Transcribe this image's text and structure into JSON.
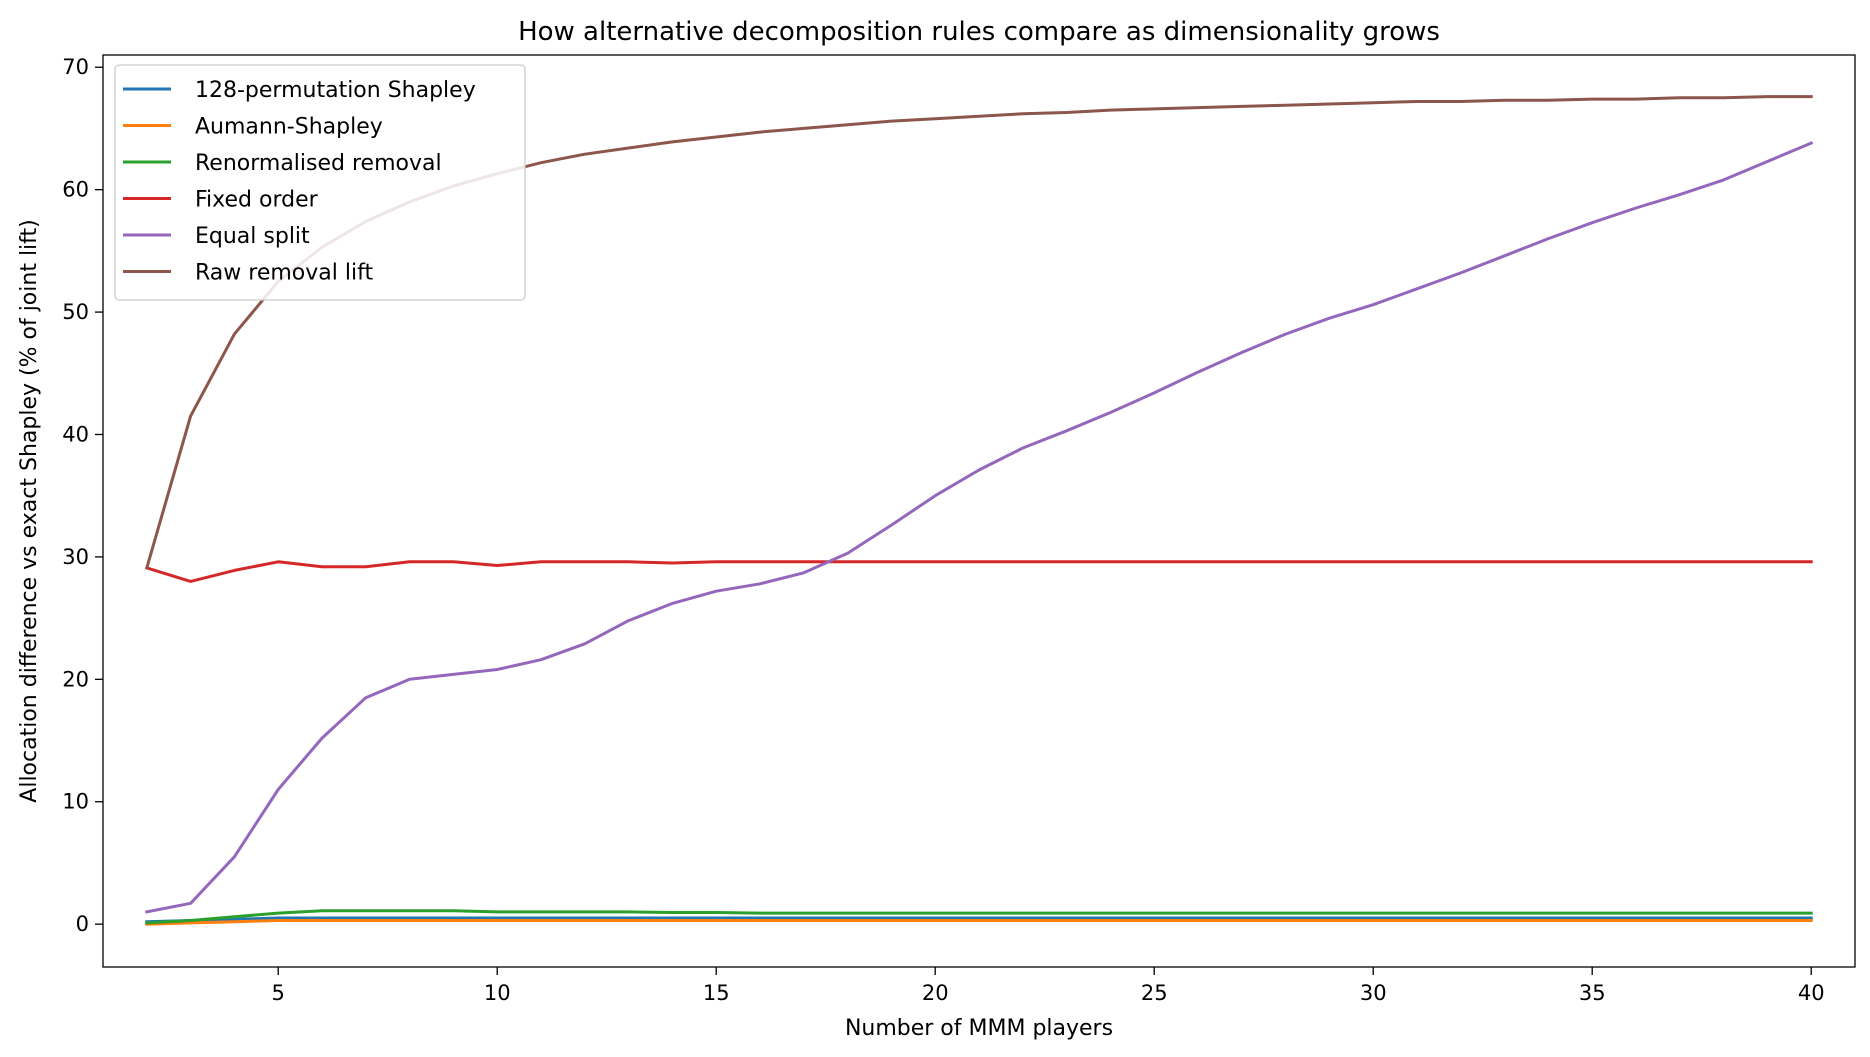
{
  "chart_data": {
    "type": "line",
    "title": "How alternative decomposition rules compare as dimensionality grows",
    "xlabel": "Number of MMM players",
    "ylabel": "Allocation difference vs exact Shapley (% of joint lift)",
    "xlim": [
      1.0,
      41.0
    ],
    "ylim": [
      -3.5,
      71.0
    ],
    "xticks": [
      5,
      10,
      15,
      20,
      25,
      30,
      35,
      40
    ],
    "yticks": [
      0,
      10,
      20,
      30,
      40,
      50,
      60,
      70
    ],
    "grid": false,
    "legend_position": "upper-left",
    "x": [
      2,
      3,
      4,
      5,
      6,
      7,
      8,
      9,
      10,
      11,
      12,
      13,
      14,
      15,
      16,
      17,
      18,
      19,
      20,
      21,
      22,
      23,
      24,
      25,
      26,
      27,
      28,
      29,
      30,
      31,
      32,
      33,
      34,
      35,
      36,
      37,
      38,
      39,
      40
    ],
    "series": [
      {
        "name": "128-permutation Shapley",
        "color": "#1f77b4",
        "values": [
          0.2,
          0.3,
          0.4,
          0.5,
          0.5,
          0.5,
          0.5,
          0.5,
          0.5,
          0.5,
          0.5,
          0.5,
          0.5,
          0.5,
          0.5,
          0.5,
          0.5,
          0.5,
          0.5,
          0.5,
          0.5,
          0.5,
          0.5,
          0.5,
          0.5,
          0.5,
          0.5,
          0.5,
          0.5,
          0.5,
          0.5,
          0.5,
          0.5,
          0.5,
          0.5,
          0.5,
          0.5,
          0.5,
          0.5
        ]
      },
      {
        "name": "Aumann-Shapley",
        "color": "#ff7f0e",
        "values": [
          0.0,
          0.1,
          0.2,
          0.3,
          0.3,
          0.3,
          0.3,
          0.3,
          0.3,
          0.3,
          0.3,
          0.3,
          0.3,
          0.3,
          0.3,
          0.3,
          0.3,
          0.3,
          0.3,
          0.3,
          0.3,
          0.3,
          0.3,
          0.3,
          0.3,
          0.3,
          0.3,
          0.3,
          0.3,
          0.3,
          0.3,
          0.3,
          0.3,
          0.3,
          0.3,
          0.3,
          0.3,
          0.3,
          0.3
        ]
      },
      {
        "name": "Renormalised removal",
        "color": "#2ca02c",
        "values": [
          0.1,
          0.3,
          0.6,
          0.9,
          1.1,
          1.1,
          1.1,
          1.1,
          1.0,
          1.0,
          1.0,
          1.0,
          0.95,
          0.95,
          0.9,
          0.9,
          0.9,
          0.9,
          0.9,
          0.9,
          0.9,
          0.9,
          0.9,
          0.9,
          0.9,
          0.9,
          0.9,
          0.9,
          0.9,
          0.9,
          0.9,
          0.9,
          0.9,
          0.9,
          0.9,
          0.9,
          0.9,
          0.9,
          0.9
        ]
      },
      {
        "name": "Fixed order",
        "color": "#d62728",
        "values": [
          29.1,
          28.0,
          28.9,
          29.6,
          29.2,
          29.2,
          29.6,
          29.6,
          29.3,
          29.6,
          29.6,
          29.6,
          29.5,
          29.6,
          29.6,
          29.6,
          29.6,
          29.6,
          29.6,
          29.6,
          29.6,
          29.6,
          29.6,
          29.6,
          29.6,
          29.6,
          29.6,
          29.6,
          29.6,
          29.6,
          29.6,
          29.6,
          29.6,
          29.6,
          29.6,
          29.6,
          29.6,
          29.6,
          29.6
        ]
      },
      {
        "name": "Equal split",
        "color": "#9467bd",
        "values": [
          1.0,
          1.7,
          5.5,
          11.0,
          15.2,
          18.5,
          20.0,
          20.4,
          20.8,
          21.6,
          22.9,
          24.8,
          26.2,
          27.2,
          27.8,
          28.7,
          30.3,
          32.6,
          35.0,
          37.1,
          38.9,
          40.3,
          41.8,
          43.4,
          45.1,
          46.7,
          48.2,
          49.5,
          50.6,
          51.9,
          53.2,
          54.6,
          56.0,
          57.3,
          58.5,
          59.6,
          60.8,
          62.3,
          63.8
        ]
      },
      {
        "name": "Raw removal lift",
        "color": "#8c564b",
        "values": [
          29.1,
          41.5,
          48.2,
          52.5,
          55.3,
          57.4,
          59.0,
          60.3,
          61.3,
          62.2,
          62.9,
          63.4,
          63.9,
          64.3,
          64.7,
          65.0,
          65.3,
          65.6,
          65.8,
          66.0,
          66.2,
          66.3,
          66.5,
          66.6,
          66.7,
          66.8,
          66.9,
          67.0,
          67.1,
          67.2,
          67.2,
          67.3,
          67.3,
          67.4,
          67.4,
          67.5,
          67.5,
          67.6,
          67.6
        ]
      }
    ]
  }
}
